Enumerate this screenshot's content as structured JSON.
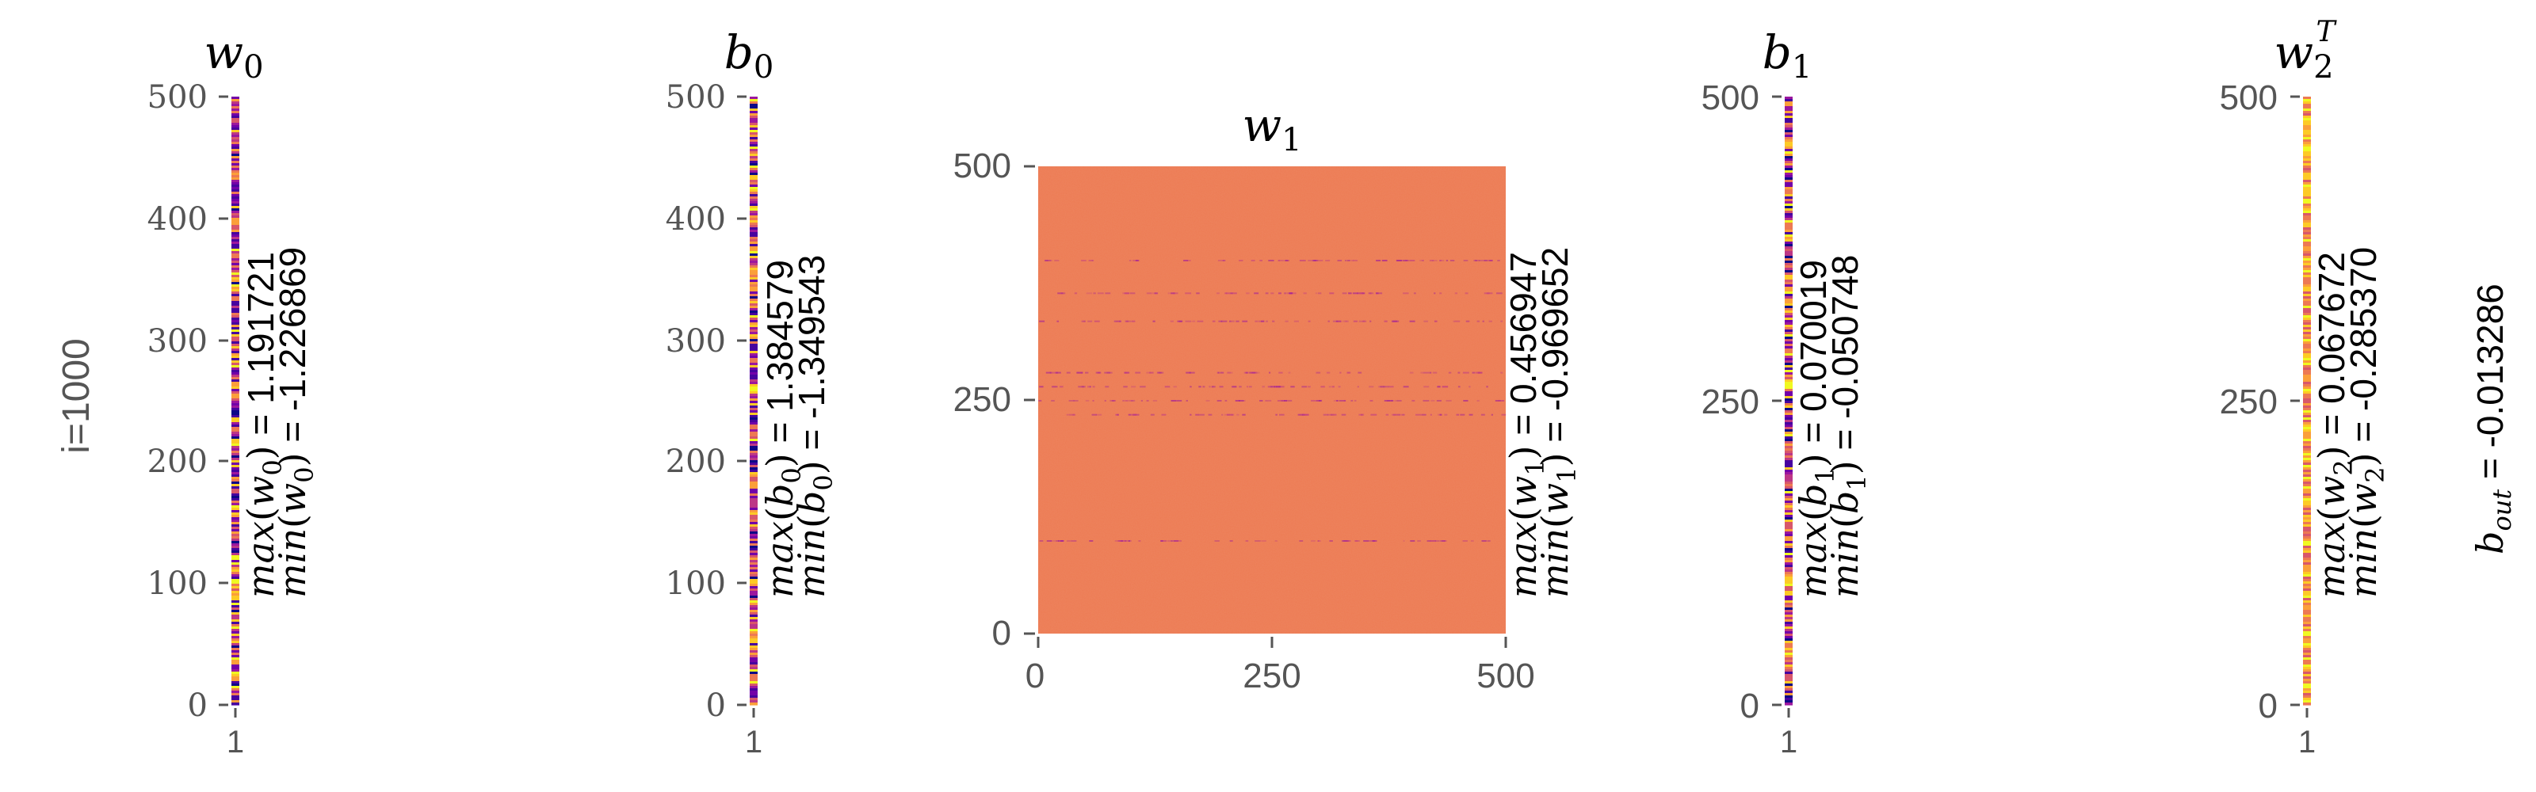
{
  "figure": {
    "row_label": "i=1000",
    "bout_label": "b",
    "bout_sub": "out",
    "bout_value": " = -0.013286"
  },
  "chart_data": [
    {
      "type": "heatmap",
      "title_main": "w",
      "title_sub": "0",
      "title_sup": "",
      "x_ticks": [
        "1"
      ],
      "y_ticks": [
        "0",
        "100",
        "200",
        "300",
        "400",
        "500"
      ],
      "ylim": [
        0,
        500
      ],
      "colormap": "plasma",
      "stats": {
        "max_fn": "max",
        "min_fn": "min",
        "var_main": "w",
        "var_sub": "0",
        "max_value": "1.191721",
        "min_value": "-1.226869"
      }
    },
    {
      "type": "heatmap",
      "title_main": "b",
      "title_sub": "0",
      "title_sup": "",
      "x_ticks": [
        "1"
      ],
      "y_ticks": [
        "0",
        "100",
        "200",
        "300",
        "400",
        "500"
      ],
      "ylim": [
        0,
        500
      ],
      "colormap": "plasma",
      "stats": {
        "max_fn": "max",
        "min_fn": "min",
        "var_main": "b",
        "var_sub": "0",
        "max_value": "1.384579",
        "min_value": "-1.349543"
      }
    },
    {
      "type": "heatmap",
      "title_main": "w",
      "title_sub": "1",
      "title_sup": "",
      "x_ticks": [
        "0",
        "250",
        "500"
      ],
      "y_ticks": [
        "0",
        "250",
        "500"
      ],
      "xlim": [
        0,
        500
      ],
      "ylim": [
        0,
        500
      ],
      "colormap": "plasma",
      "dominant_color": "#ec7a52",
      "stats": {
        "max_fn": "max",
        "min_fn": "min",
        "var_main": "w",
        "var_sub": "1",
        "max_value": "0.456947",
        "min_value": "-0.969652"
      }
    },
    {
      "type": "heatmap",
      "title_main": "b",
      "title_sub": "1",
      "title_sup": "",
      "x_ticks": [
        "1"
      ],
      "y_ticks": [
        "0",
        "250",
        "500"
      ],
      "ylim": [
        0,
        500
      ],
      "colormap": "plasma",
      "stats": {
        "max_fn": "max",
        "min_fn": "min",
        "var_main": "b",
        "var_sub": "1",
        "max_value": "0.070019",
        "min_value": "-0.050748"
      }
    },
    {
      "type": "heatmap",
      "title_main": "w",
      "title_sub": "2",
      "title_sup": "T",
      "x_ticks": [
        "1"
      ],
      "y_ticks": [
        "0",
        "250",
        "500"
      ],
      "ylim": [
        0,
        500
      ],
      "colormap": "plasma",
      "stats": {
        "max_fn": "max",
        "min_fn": "min",
        "var_main": "w",
        "var_sub": "2",
        "max_value": "0.067672",
        "min_value": "-0.285370"
      }
    }
  ]
}
